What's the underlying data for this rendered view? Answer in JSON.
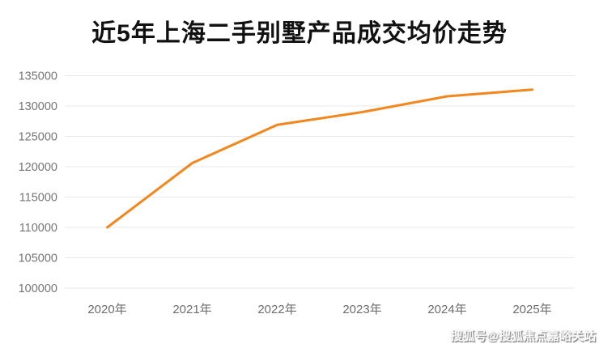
{
  "page": {
    "background_color": "#ffffff"
  },
  "header": {
    "title": "近5年上海二手别墅产品成交均价走势",
    "title_color": "#111111"
  },
  "watermark": {
    "text": "搜狐号@搜狐焦点嘉峪关站"
  },
  "chart_data": {
    "type": "line",
    "title": "近5年上海二手别墅产品成交均价走势",
    "categories": [
      "2020年",
      "2021年",
      "2022年",
      "2023年",
      "2024年",
      "2025年"
    ],
    "values": [
      110000,
      120600,
      126900,
      129000,
      131600,
      132700
    ],
    "xlabel": "",
    "ylabel": "",
    "ylim": [
      100000,
      135000
    ],
    "yticks": [
      100000,
      105000,
      110000,
      115000,
      120000,
      125000,
      130000,
      135000
    ],
    "grid": true,
    "legend": "none",
    "marker": "none",
    "line_color": "#f2871e",
    "line_width": 3,
    "grid_color": "#e9e9e9",
    "axis_label_color": "#757575",
    "x_label_color": "#6d6d6d"
  }
}
